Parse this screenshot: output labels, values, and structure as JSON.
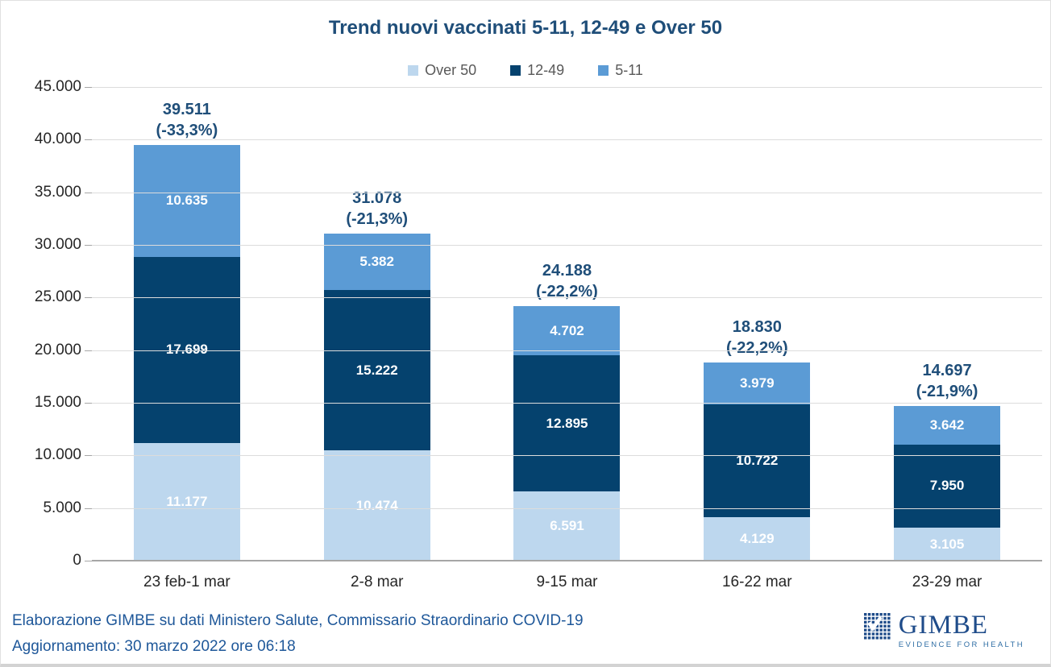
{
  "title": "Trend nuovi vaccinati 5-11, 12-49 e Over 50",
  "legend": [
    {
      "label": "Over 50",
      "color": "#BDD7EE"
    },
    {
      "label": "12-49",
      "color": "#05426E"
    },
    {
      "label": "5-11",
      "color": "#5B9BD5"
    }
  ],
  "chart_data": {
    "type": "bar",
    "stacked": true,
    "title": "Trend nuovi vaccinati 5-11, 12-49 e Over 50",
    "categories": [
      "23 feb-1 mar",
      "2-8 mar",
      "9-15 mar",
      "16-22 mar",
      "23-29 mar"
    ],
    "series": [
      {
        "name": "Over 50",
        "color": "#BDD7EE",
        "values": [
          11177,
          10474,
          6591,
          4129,
          3105
        ],
        "labels": [
          "11.177",
          "10.474",
          "6.591",
          "4.129",
          "3.105"
        ]
      },
      {
        "name": "12-49",
        "color": "#05426E",
        "values": [
          17699,
          15222,
          12895,
          10722,
          7950
        ],
        "labels": [
          "17.699",
          "15.222",
          "12.895",
          "10.722",
          "7.950"
        ]
      },
      {
        "name": "5-11",
        "color": "#5B9BD5",
        "values": [
          10635,
          5382,
          4702,
          3979,
          3642
        ],
        "labels": [
          "10.635",
          "5.382",
          "4.702",
          "3.979",
          "3.642"
        ]
      }
    ],
    "totals": [
      39511,
      31078,
      24188,
      18830,
      14697
    ],
    "total_labels": [
      "39.511",
      "31.078",
      "24.188",
      "18.830",
      "14.697"
    ],
    "total_changes": [
      "(-33,3%)",
      "(-21,3%)",
      "(-22,2%)",
      "(-22,2%)",
      "(-21,9%)"
    ],
    "ylim": [
      0,
      45000
    ],
    "ytick_step": 5000,
    "ytick_labels": [
      "0",
      "5.000",
      "10.000",
      "15.000",
      "20.000",
      "25.000",
      "30.000",
      "35.000",
      "40.000",
      "45.000"
    ],
    "grid": true,
    "legend_position": "top"
  },
  "footer": {
    "line1": "Elaborazione GIMBE su dati Ministero Salute, Commissario Straordinario COVID-19",
    "line2": "Aggiornamento: 30 marzo 2022 ore 06:18"
  },
  "logo": {
    "name": "GIMBE",
    "tagline": "EVIDENCE FOR HEALTH"
  },
  "colors": {
    "title_blue": "#1F4E79",
    "footer_blue": "#1E5799",
    "axis_text": "#262626",
    "legend_text": "#595959",
    "gridline": "#DCDCDC",
    "axis_line": "#A6A6A6"
  }
}
